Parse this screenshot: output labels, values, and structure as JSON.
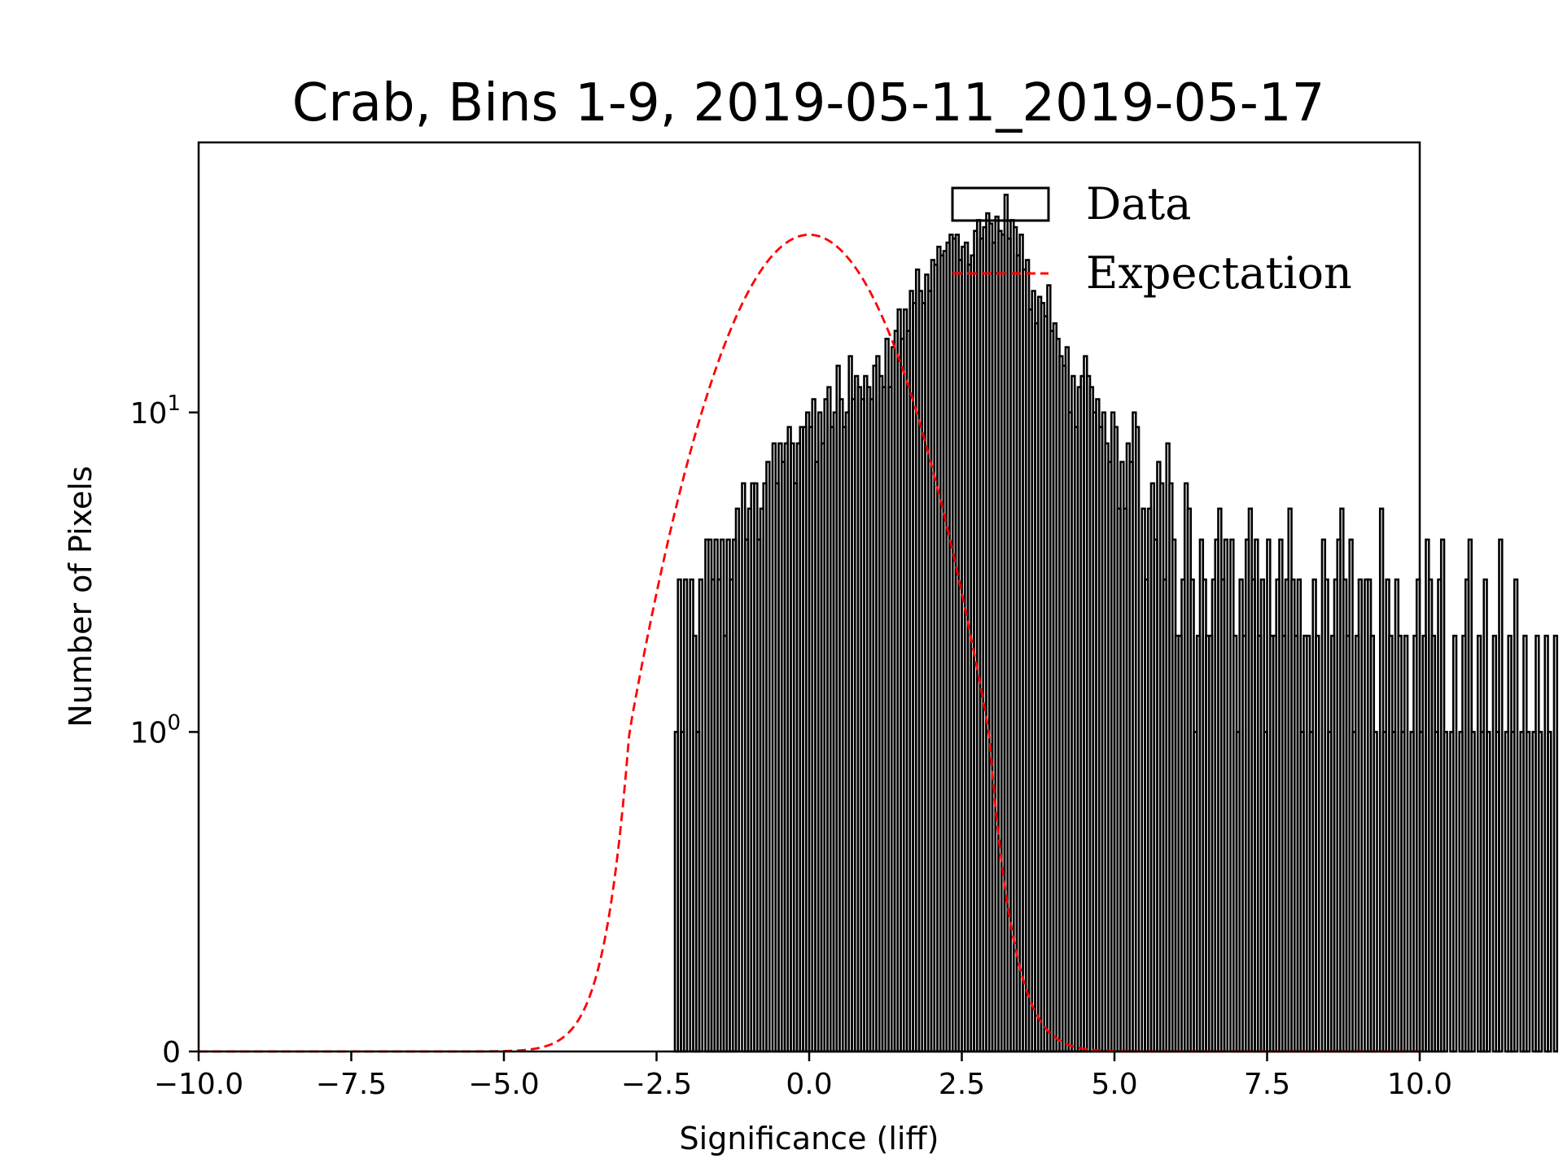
{
  "chart_data": {
    "type": "histogram",
    "title": "Crab, Bins 1-9, 2019-05-11_2019-05-17",
    "xlabel": "Significance (liff)",
    "ylabel": "Number of Pixels",
    "xlim": [
      -10.0,
      10.0
    ],
    "yscale": "symlog",
    "ylim": [
      0,
      70
    ],
    "x_ticks": [
      "−10.0",
      "−7.5",
      "−5.0",
      "−2.5",
      "0.0",
      "2.5",
      "5.0",
      "7.5",
      "10.0"
    ],
    "x_tick_values": [
      -10,
      -7.5,
      -5,
      -2.5,
      0,
      2.5,
      5,
      7.5,
      10
    ],
    "y_ticks": [
      {
        "value": 0,
        "base": "0",
        "exp": ""
      },
      {
        "value": 1,
        "base": "10",
        "exp": "0"
      },
      {
        "value": 10,
        "base": "10",
        "exp": "1"
      }
    ],
    "grid": false,
    "legend_position": "upper right",
    "legend": [
      {
        "label": "Data",
        "style": "step-outline",
        "color": "#000000"
      },
      {
        "label": "Expectation",
        "style": "dashed-line",
        "color": "#ff0000"
      }
    ],
    "series": [
      {
        "name": "Data",
        "kind": "step-histogram",
        "color": "#000000",
        "bin_width": 0.05,
        "x_start": -2.2,
        "counts": [
          1,
          3,
          1,
          3,
          0,
          3,
          2,
          1,
          3,
          0,
          4,
          4,
          3,
          4,
          3,
          4,
          2,
          4,
          3,
          4,
          5,
          0,
          6,
          4,
          5,
          6,
          6,
          4,
          5,
          6,
          7,
          0,
          8,
          6,
          8,
          7,
          8,
          9,
          8,
          6,
          8,
          9,
          9,
          10,
          9,
          11,
          7,
          10,
          8,
          11,
          12,
          9,
          10,
          14,
          11,
          9,
          10,
          15,
          11,
          13,
          12,
          11,
          13,
          12,
          11,
          14,
          15,
          13,
          12,
          17,
          12,
          16,
          18,
          21,
          17,
          21,
          18,
          24,
          22,
          28,
          24,
          22,
          27,
          24,
          30,
          29,
          33,
          31,
          32,
          34,
          36,
          35,
          36,
          30,
          33,
          34,
          29,
          31,
          37,
          40,
          35,
          38,
          42,
          39,
          34,
          41,
          37,
          36,
          48,
          35,
          40,
          38,
          31,
          36,
          28,
          30,
          21,
          24,
          19,
          23,
          22,
          20,
          25,
          18,
          19,
          17,
          15,
          14,
          16,
          10,
          13,
          9,
          12,
          13,
          15,
          13,
          12,
          10,
          11,
          9,
          10,
          8,
          7,
          10,
          9,
          5,
          7,
          5,
          8,
          7,
          10,
          9,
          0,
          5,
          3,
          5,
          6,
          4,
          7,
          6,
          3,
          8,
          6,
          4,
          2,
          2,
          3,
          6,
          5,
          3,
          1,
          2,
          4,
          3,
          2,
          2,
          3,
          4,
          5,
          3,
          4,
          0,
          4,
          2,
          1,
          3,
          2,
          4,
          5,
          3,
          4,
          2,
          3,
          1,
          4,
          2,
          2,
          3,
          4,
          2,
          3,
          5,
          3,
          2,
          3,
          1,
          2,
          2,
          1,
          3,
          2,
          0,
          4,
          3,
          1,
          2,
          3,
          4,
          5,
          3,
          2,
          4,
          1,
          2,
          3,
          0,
          3,
          3,
          2,
          1,
          0,
          5,
          1,
          3,
          2,
          1,
          3,
          2,
          1,
          2,
          0,
          1,
          2,
          3,
          1,
          2,
          4,
          3,
          2,
          1,
          3,
          4,
          1,
          0,
          1,
          2,
          0,
          1,
          2,
          3,
          4,
          1,
          0,
          2,
          1,
          3,
          1,
          0,
          2,
          1,
          4,
          0,
          1,
          2,
          1,
          3,
          0,
          1,
          2,
          1,
          0,
          1,
          2,
          1,
          0,
          2,
          1,
          0,
          2
        ]
      },
      {
        "name": "Expectation",
        "kind": "gaussian",
        "color": "#ff0000",
        "linestyle": "dashed",
        "mean": 0.0,
        "sigma": 1.1,
        "peak": 36
      }
    ]
  }
}
